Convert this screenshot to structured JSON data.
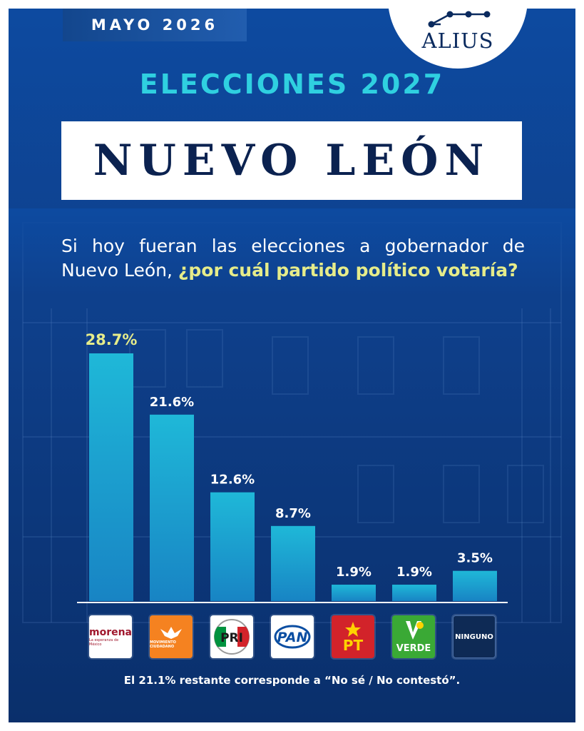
{
  "header": {
    "date": "MAYO 2026",
    "brand": "ALIUS",
    "subtitle": "ELECCIONES 2027",
    "title": "NUEVO LEÓN"
  },
  "question": {
    "plain": "Si hoy fueran las elecciones a gobernador de Nuevo León, ",
    "highlight": "¿por cuál partido político votaría?"
  },
  "chart_data": {
    "type": "bar",
    "title": "",
    "xlabel": "",
    "ylabel": "",
    "categories": [
      "morena",
      "MOVIMIENTO CIUDADANO",
      "PRI",
      "PAN",
      "PT",
      "VERDE",
      "NINGUNO"
    ],
    "values": [
      28.7,
      21.6,
      12.6,
      8.7,
      1.9,
      1.9,
      3.5
    ],
    "value_labels": [
      "28.7%",
      "21.6%",
      "12.6%",
      "8.7%",
      "1.9%",
      "1.9%",
      "3.5%"
    ],
    "ylim": [
      0,
      28.7
    ],
    "grid": false,
    "legend": "none",
    "bar_color": "#1fb8d8",
    "highlight_label_color": "#e6ec8a"
  },
  "party_logos": {
    "morena": {
      "name": "morena",
      "tagline": "La esperanza de México",
      "color": "#a0172d"
    },
    "mc": {
      "name": "MOVIMIENTO CIUDADANO",
      "color": "#f58220"
    },
    "pri": {
      "name": "PRI",
      "colors": [
        "#00923f",
        "#ffffff",
        "#d2232a"
      ]
    },
    "pan": {
      "name": "PAN",
      "color": "#0b4ea2"
    },
    "pt": {
      "name": "PT",
      "color": "#d2232a"
    },
    "verde": {
      "name": "VERDE",
      "color": "#3aa935"
    },
    "ninguno": {
      "name": "NINGUNO",
      "color": "#0e2a55"
    }
  },
  "footnote": "El 21.1% restante corresponde a “No sé / No contestó”.",
  "colors": {
    "background": "#0d4aa0",
    "accent_cyan": "#2fd0e0",
    "title_navy": "#0b2250"
  }
}
